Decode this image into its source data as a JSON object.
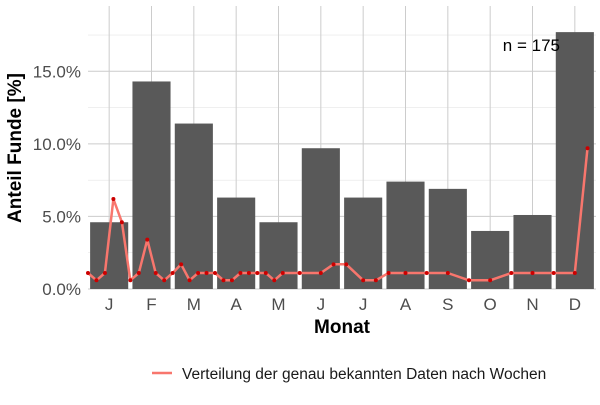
{
  "chart_data": {
    "type": "bar",
    "xlabel": "Monat",
    "ylabel": "Anteil Funde [%]",
    "annotation": "n = 175",
    "categories": [
      "J",
      "F",
      "M",
      "A",
      "M",
      "J",
      "J",
      "A",
      "S",
      "O",
      "N",
      "D"
    ],
    "values": [
      4.6,
      14.3,
      11.4,
      6.3,
      4.6,
      9.7,
      6.3,
      7.4,
      6.9,
      4.0,
      5.1,
      17.7
    ],
    "ylim": [
      0,
      19.5
    ],
    "yticks": [
      0,
      5,
      10,
      15
    ],
    "ytick_labels": [
      "0.0%",
      "5.0%",
      "10.0%",
      "15.0%"
    ],
    "grid": true,
    "legend_position": "bottom",
    "bar_color": "#595959",
    "line_color": "#f8766d",
    "point_color": "#cc0000",
    "line_series": {
      "name": "Verteilung der genau bekannten Daten nach Wochen",
      "x": [
        0.5,
        0.7,
        0.9,
        1.1,
        1.3,
        1.5,
        1.7,
        1.9,
        2.1,
        2.3,
        2.5,
        2.7,
        2.9,
        3.1,
        3.3,
        3.5,
        3.7,
        3.9,
        4.1,
        4.3,
        4.5,
        4.7,
        4.9,
        5.1,
        5.5,
        6.0,
        6.3,
        6.6,
        7.0,
        7.3,
        7.6,
        8.0,
        8.5,
        9.0,
        9.5,
        10.0,
        10.5,
        11.0,
        11.5,
        12.0,
        12.3
      ],
      "y": [
        1.1,
        0.6,
        1.1,
        6.2,
        4.6,
        0.6,
        1.1,
        3.4,
        1.1,
        0.6,
        1.1,
        1.7,
        0.6,
        1.1,
        1.1,
        1.1,
        0.6,
        0.6,
        1.1,
        1.1,
        1.1,
        1.1,
        0.6,
        1.1,
        1.1,
        1.1,
        1.7,
        1.7,
        0.6,
        0.6,
        1.1,
        1.1,
        1.1,
        1.1,
        0.6,
        0.6,
        1.1,
        1.1,
        1.1,
        1.1,
        9.7
      ]
    }
  }
}
